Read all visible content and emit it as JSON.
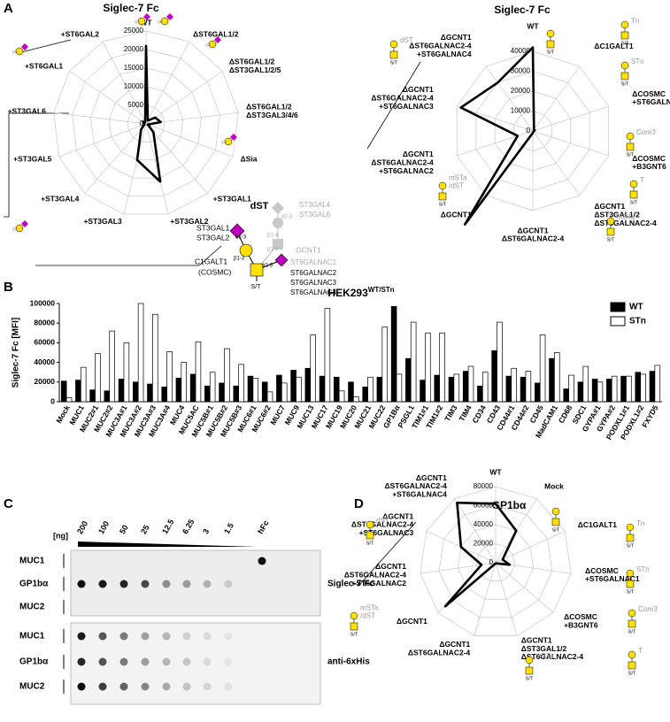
{
  "panels": [
    "A",
    "B",
    "C",
    "D"
  ],
  "chart_data": [
    {
      "type": "radar",
      "title": "Siglec-7 Fc",
      "color": "#000000",
      "grid": true,
      "categories": [
        "WT",
        "ΔST6GAL1/2",
        "ΔST6GAL1/2\nΔST3GAL1/2/5",
        "ΔST6GAL1/2\nΔST3GAL3/4/6",
        "ΔSia",
        "+ST3GAL1",
        "+ST3GAL2",
        "+ST3GAL3",
        "+ST3GAL4",
        "+ST3GAL5",
        "+ST3GAL6",
        "+ST6GAL1",
        "+ST6GAL2"
      ],
      "values": [
        21000,
        1000,
        3000,
        4000,
        500,
        3000,
        16000,
        10000,
        2000,
        500,
        500,
        1000,
        500
      ],
      "ylim": [
        0,
        25000
      ],
      "yticks": [
        0,
        5000,
        10000,
        15000,
        20000,
        25000
      ]
    },
    {
      "type": "radar",
      "title": "Siglec-7 Fc",
      "color": "#000000",
      "grid": true,
      "categories": [
        "WT",
        "ΔC1GALT1",
        "ΔCOSMC\n+ST6GALNAC1",
        "ΔCOSMC\n+B3GNT6",
        "ΔGCNT1\nΔST3GAL1/2\nΔST6GALNAC2-4",
        "ΔGCNT1\nΔST6GALNAC2-4",
        "ΔGCNT1",
        "ΔGCNT1\nΔST6GALNAC2-4\n+ST6GALNAC2",
        "ΔGCNT1\nΔST6GALNAC2-4\n+ST6GALNAC3",
        "ΔGCNT1\nΔST6GALNAC2-4\n+ST6GALNAC4"
      ],
      "values": [
        42000,
        1000,
        1000,
        500,
        500,
        1000,
        58000,
        8000,
        38000,
        30000
      ],
      "ylim": [
        0,
        40000
      ],
      "yticks": [
        0,
        10000,
        20000,
        30000,
        40000
      ]
    },
    {
      "type": "bar",
      "title": "HEK293",
      "title_sup": "WT/STn",
      "ylabel": "Siglec-7 Fc [MFI]",
      "legend": "upper right",
      "categories": [
        "Mock",
        "MUC1",
        "MUC2#1",
        "MUC2#2",
        "MUC3A#1",
        "MUC3A#2",
        "MUC3A#3",
        "MUC3A#4",
        "MUC4",
        "MUC5AC",
        "MUC5B#1",
        "MUC5B#2",
        "MUC5B#3",
        "MUC6#1",
        "MUC6#2",
        "MUC7",
        "MUC9",
        "MUC13",
        "MUC17",
        "MUC19",
        "MUC20",
        "MUC21",
        "MUC22",
        "GP1Bα",
        "PSGL1",
        "TIM1#1",
        "TIM1#2",
        "TIM3",
        "TIM4",
        "CD34",
        "CD43",
        "CD44#1",
        "CD44#2",
        "CD45",
        "MadCAM1",
        "CD68",
        "SDC1",
        "GYPA#1",
        "GYPA#2",
        "PODXL1#1",
        "PODXL1#2",
        "FXYD5"
      ],
      "series": [
        {
          "name": "WT",
          "color": "#000000",
          "values": [
            21000,
            22000,
            12000,
            11000,
            23000,
            20000,
            18000,
            15000,
            24000,
            28000,
            16000,
            19000,
            16000,
            26000,
            20000,
            27000,
            32000,
            34000,
            26000,
            25000,
            20000,
            15000,
            25000,
            97000,
            44000,
            22000,
            27000,
            25000,
            31000,
            16000,
            52000,
            26000,
            25000,
            19000,
            44000,
            13000,
            20000,
            23000,
            23000,
            26000,
            30000,
            31000
          ]
        },
        {
          "name": "STn",
          "color": "#ffffff",
          "values": [
            4000,
            35000,
            49000,
            72000,
            60000,
            100000,
            89000,
            51000,
            40000,
            61000,
            30000,
            54000,
            38000,
            24000,
            10000,
            19000,
            25000,
            68000,
            95000,
            11000,
            5000,
            25000,
            76000,
            28000,
            81000,
            70000,
            70000,
            28000,
            36000,
            30000,
            81000,
            34000,
            31000,
            68000,
            50000,
            27000,
            36000,
            20000,
            26000,
            26000,
            28000,
            37000
          ]
        }
      ],
      "ylim": [
        0,
        100000
      ],
      "yticks": [
        0,
        20000,
        40000,
        60000,
        80000,
        100000
      ]
    },
    {
      "type": "radar",
      "title": "GP1bα",
      "color": "#000000",
      "grid": true,
      "categories": [
        "WT",
        "Mock",
        "ΔC1GALT1",
        "ΔCOSMC\n+ST6GALNAC1",
        "ΔCOSMC\n+B3GNT6",
        "ΔGCNT1\nΔST3GAL1/2\nΔST6GALNAC2-4",
        "ΔGCNT1\nΔST6GALNAC2-4",
        "ΔGCNT1",
        "ΔGCNT1\nΔST6GALNAC2-4\n+ST6GALNAC2",
        "ΔGCNT1\nΔST6GALNAC2-4\n+ST6GALNAC3",
        "ΔGCNT1\nΔST6GALNAC2-4\n+ST6GALNAC4"
      ],
      "values": [
        62000,
        40000,
        8000,
        15000,
        1000,
        1000,
        1000,
        70000,
        15000,
        40000,
        75000
      ],
      "ylim": [
        0,
        80000
      ],
      "yticks": [
        0,
        20000,
        40000,
        60000,
        80000
      ]
    }
  ],
  "blot": {
    "unit": "[ng]",
    "amounts": [
      200,
      100,
      50,
      25,
      12.5,
      6.25,
      3,
      1.5,
      "hFc"
    ],
    "rows": [
      "MUC1",
      "GP1bα",
      "MUC2"
    ],
    "probes": [
      "Siglec-7 Fc",
      "anti-6xHis"
    ]
  },
  "diagram": {
    "labels": [
      "dST",
      "ST3GAL4",
      "ST3GAL6",
      "ST3GAL1",
      "ST3GAL2",
      "GCNT1",
      "C1GALT1",
      "(COSMC)",
      "ST6GALNAC1",
      "ST6GALNAC2",
      "ST6GALNAC3",
      "ST6GALNAC4",
      "α2-3",
      "β1-3",
      "α2-6",
      "α2-3",
      "β1-4",
      "β1-6",
      "S/T"
    ]
  },
  "glycans": {
    "dST": "dST",
    "Tn": "Tn",
    "STn": "STn",
    "Core3": "Core3",
    "T": "T",
    "mSTa": "mSTa",
    "mSTa_dST": "mSTa\n/dST",
    "st": "S/T",
    "a3": "α3",
    "a6": "α6"
  }
}
